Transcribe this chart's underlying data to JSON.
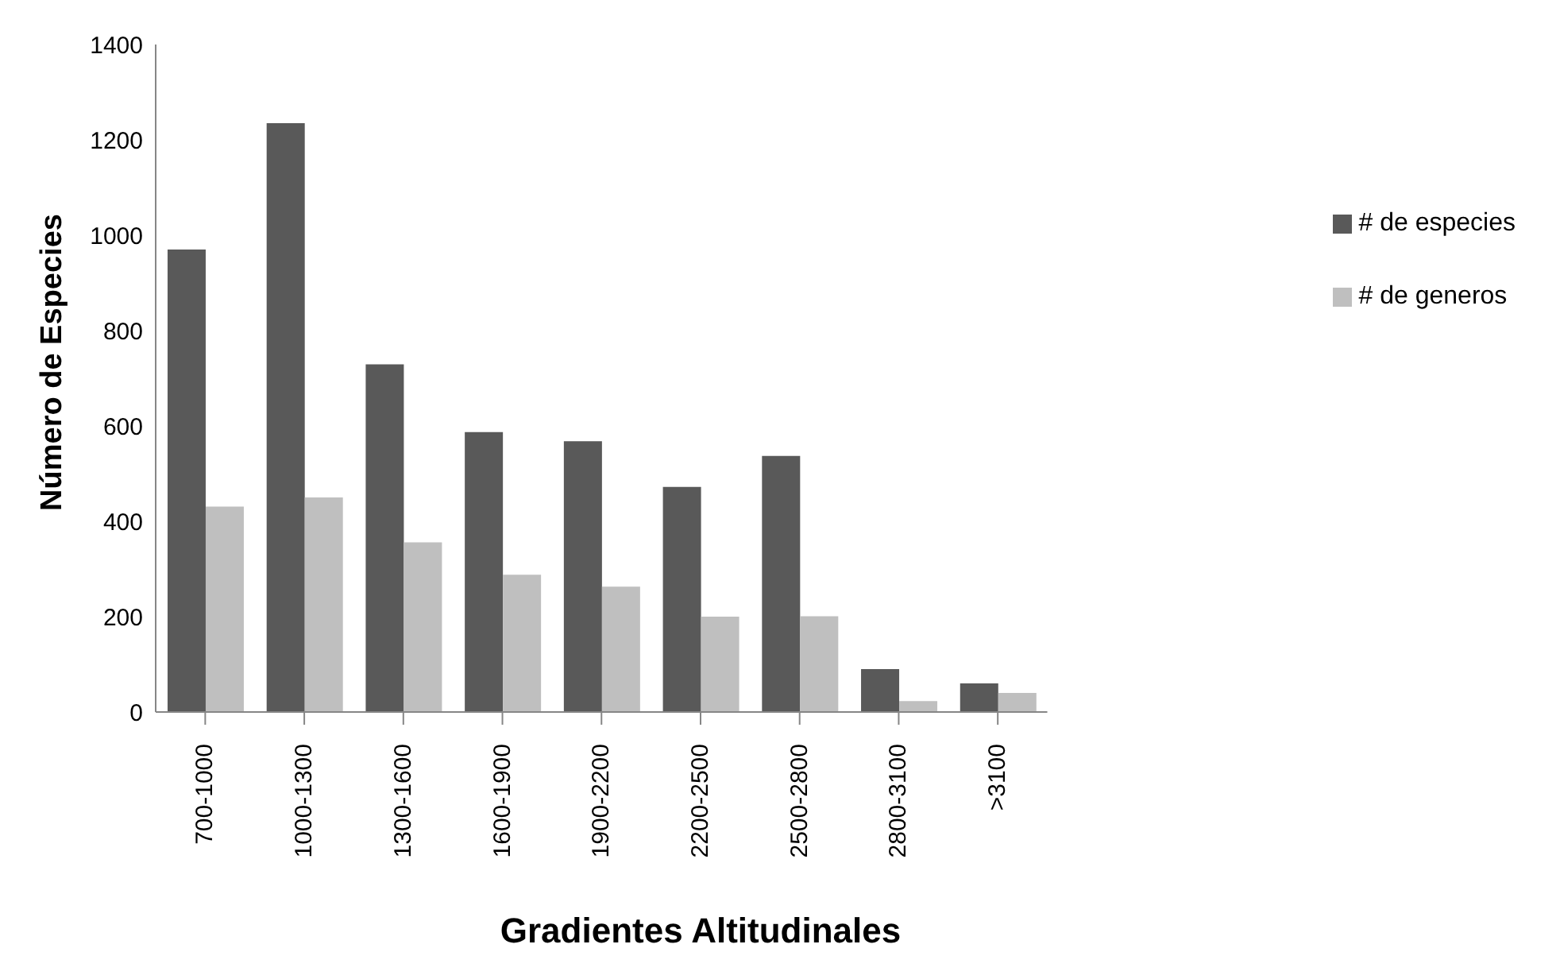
{
  "chart_data": {
    "type": "bar",
    "xlabel": "Gradientes Altitudinales",
    "ylabel": "Número de Especies",
    "categories": [
      "700-1000",
      "1000-1300",
      "1300-1600",
      "1600-1900",
      "1900-2200",
      "2200-2500",
      "2500-2800",
      "2800-3100",
      ">3100"
    ],
    "series": [
      {
        "name": "# de especies",
        "color": "#595959",
        "values": [
          970,
          1235,
          729,
          587,
          568,
          472,
          537,
          90,
          60
        ]
      },
      {
        "name": "# de generos",
        "color": "#bfbfbf",
        "values": [
          431,
          450,
          356,
          288,
          263,
          200,
          201,
          23,
          40
        ]
      }
    ],
    "ylim": [
      0,
      1400
    ],
    "yticks": [
      0,
      200,
      400,
      600,
      800,
      1000,
      1200,
      1400
    ],
    "grid": false,
    "legend": "right"
  }
}
